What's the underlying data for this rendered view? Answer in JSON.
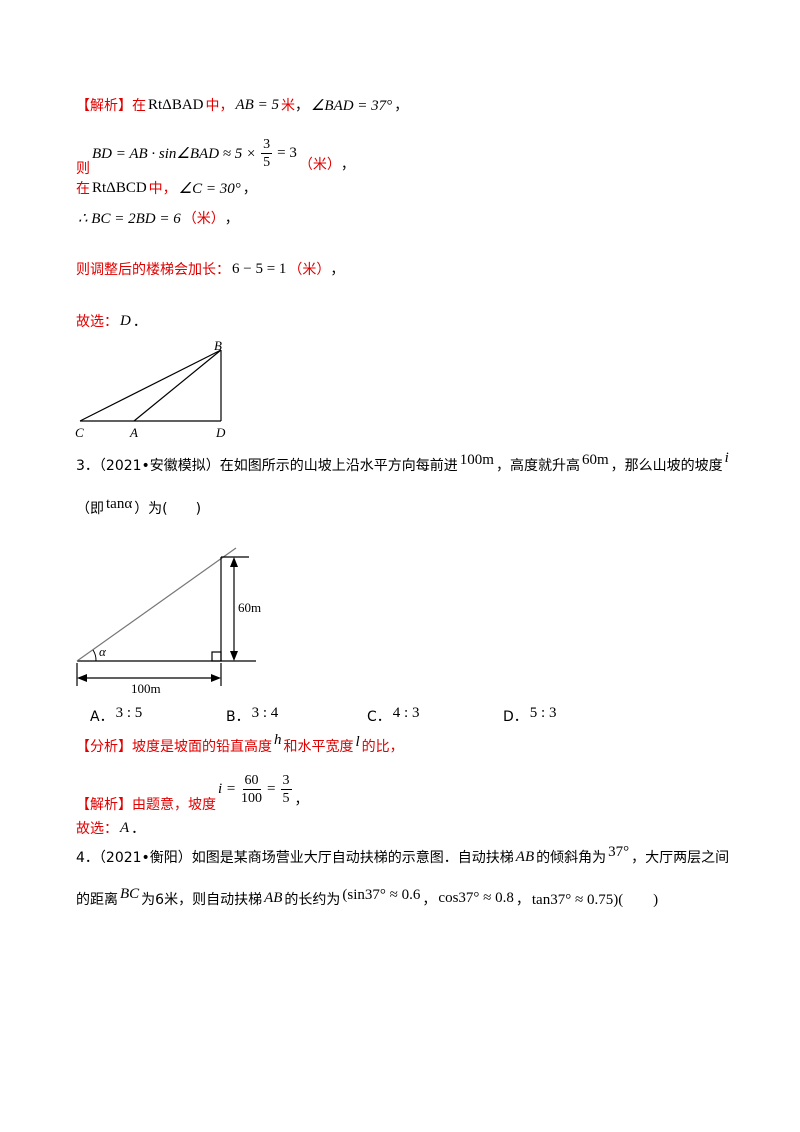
{
  "solution_1": {
    "lines": [
      [
        "【解析】在",
        "RtΔBAD",
        "中，",
        "AB = 5",
        "米",
        "，",
        "∠BAD = 37°",
        "，"
      ],
      [
        "则",
        "BD = AB · sin∠BAD ≈ 5 ×",
        "3",
        "5",
        "= 3",
        "（米）",
        "，"
      ],
      [
        "在",
        "RtΔBCD",
        "中，",
        "∠C = 30°",
        "，"
      ],
      [
        "∴ BC = 2BD = 6",
        "（米）",
        "，"
      ],
      [
        "则调整后的楼梯会加长：",
        "6 − 5 = 1",
        "（米）",
        "，"
      ],
      [
        "故选：",
        "D",
        "．"
      ]
    ],
    "figure": {
      "labels": [
        "B",
        "C",
        "A",
        "D"
      ]
    }
  },
  "question_3": {
    "lines": [
      [
        "3．（2021•安徽模拟）在如图所示的山坡上沿水平方向每前进",
        "100m",
        "，高度就升高",
        "60m",
        "，那么山坡的坡度",
        "i"
      ],
      [
        "（即",
        "tanα",
        "）为(　　)"
      ]
    ],
    "figure": {
      "labels": [
        "60m",
        "α",
        "100m"
      ]
    },
    "options": [
      [
        "A．",
        "3 : 5"
      ],
      [
        "B．",
        "3 : 4"
      ],
      [
        "C．",
        "4 : 3"
      ],
      [
        "D．",
        "5 : 3"
      ]
    ],
    "analysis": [
      "【分析】坡度是坡面的铅直高度",
      "h",
      "和水平宽度",
      "l",
      "的比，"
    ],
    "solution": [
      "【解析】由题意，坡度",
      "i =",
      "60",
      "100",
      "=",
      "3",
      "5",
      "，"
    ],
    "answer": [
      "故选：",
      "A",
      "．"
    ]
  },
  "question_4": {
    "lines": [
      [
        "4．（2021•衡阳）如图是某商场营业大厅自动扶梯的示意图．自动扶梯",
        "AB",
        "的倾斜角为",
        "37°",
        "，大厅两层之间"
      ],
      [
        "的距离",
        "BC",
        "为6米，则自动扶梯",
        "AB",
        "的长约为",
        "(sin37° ≈ 0.6",
        "，",
        "cos37° ≈ 0.8",
        "，",
        "tan37° ≈ 0.75)(　　)"
      ]
    ]
  }
}
